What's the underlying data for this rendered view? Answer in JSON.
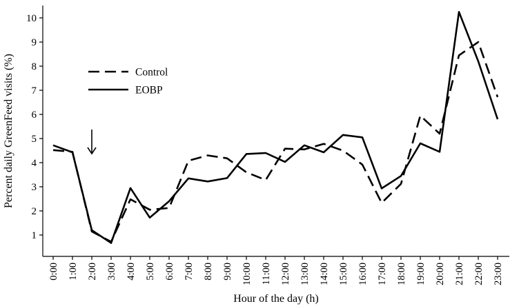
{
  "chart_data": {
    "type": "line",
    "title": "",
    "xlabel": "Hour of the day (h)",
    "ylabel": "Percent daily GreenFeed visits (%)",
    "ylim": [
      0,
      10.5
    ],
    "yticks": [
      "1",
      "2",
      "3",
      "4",
      "5",
      "6",
      "7",
      "8",
      "9",
      "10"
    ],
    "categories": [
      "0:00",
      "1:00",
      "2:00",
      "3:00",
      "4:00",
      "5:00",
      "6:00",
      "7:00",
      "8:00",
      "9:00",
      "10:00",
      "11:00",
      "12:00",
      "13:00",
      "14:00",
      "15:00",
      "16:00",
      "17:00",
      "18:00",
      "19:00",
      "20:00",
      "21:00",
      "22:00",
      "23:00"
    ],
    "series": [
      {
        "name": "Control",
        "style": "dashed",
        "values": [
          4.52,
          4.45,
          1.15,
          0.72,
          2.48,
          2.05,
          2.12,
          4.08,
          4.3,
          4.18,
          3.6,
          3.28,
          4.58,
          4.55,
          4.78,
          4.5,
          3.92,
          2.33,
          3.12,
          5.95,
          5.2,
          8.45,
          9.0,
          6.72
        ]
      },
      {
        "name": "EOBP",
        "style": "solid",
        "values": [
          4.72,
          4.43,
          1.2,
          0.67,
          2.95,
          1.72,
          2.4,
          3.35,
          3.22,
          3.36,
          4.36,
          4.4,
          4.03,
          4.72,
          4.43,
          5.15,
          5.05,
          2.93,
          3.45,
          4.8,
          4.45,
          10.25,
          8.2,
          5.8
        ]
      }
    ],
    "legend": {
      "position": "top-left",
      "entries": [
        "Control",
        "EOBP"
      ]
    },
    "annotations": [
      {
        "type": "arrow",
        "direction": "down",
        "at": "2:00"
      }
    ],
    "grid": false
  }
}
